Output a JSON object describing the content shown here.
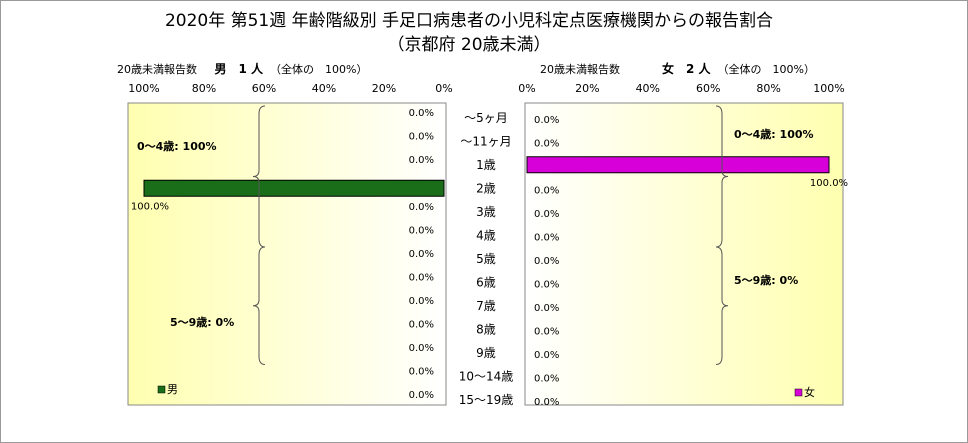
{
  "title_line1": "2020年 第51週 年齢階級別 手足口病患者の小児科定点医療機関からの報告割合",
  "title_line2": "（京都府 20歳未満）",
  "left_header": {
    "label": "20歳未満報告数",
    "count": "男　1 人",
    "note": "（全体の　100%）"
  },
  "right_header": {
    "label": "20歳未満報告数",
    "count": "女　2 人",
    "note": "（全体の　100%）"
  },
  "colors": {
    "male_bar": "#1a6e1a",
    "female_bar": "#d800d8",
    "plot_gradient_edge": "#ffffb0",
    "plot_gradient_center": "#ffffff"
  },
  "chart_data": {
    "type": "bar",
    "orientation": "horizontal-population-pyramid",
    "categories": [
      "～5ヶ月",
      "～11ヶ月",
      "1歳",
      "2歳",
      "3歳",
      "4歳",
      "5歳",
      "6歳",
      "7歳",
      "8歳",
      "9歳",
      "10～14歳",
      "15～19歳"
    ],
    "xlim": [
      0,
      100
    ],
    "x_ticks_left": [
      "100%",
      "80%",
      "60%",
      "40%",
      "20%",
      "0%"
    ],
    "x_ticks_right": [
      "0%",
      "20%",
      "40%",
      "60%",
      "80%",
      "100%"
    ],
    "series": [
      {
        "name": "男",
        "values": [
          0,
          0,
          0,
          100,
          0,
          0,
          0,
          0,
          0,
          0,
          0,
          0,
          0
        ],
        "labels": [
          "0.0%",
          "0.0%",
          "0.0%",
          "100.0%",
          "0.0%",
          "0.0%",
          "0.0%",
          "0.0%",
          "0.0%",
          "0.0%",
          "0.0%",
          "0.0%",
          "0.0%"
        ]
      },
      {
        "name": "女",
        "values": [
          0,
          0,
          100,
          0,
          0,
          0,
          0,
          0,
          0,
          0,
          0,
          0,
          0
        ],
        "labels": [
          "0.0%",
          "0.0%",
          "100.0%",
          "0.0%",
          "0.0%",
          "0.0%",
          "0.0%",
          "0.0%",
          "0.0%",
          "0.0%",
          "0.0%",
          "0.0%",
          "0.0%"
        ]
      }
    ],
    "annotations": {
      "male_0_4": "0～4歳: 100%",
      "male_5_9": "5～9歳: 0%",
      "female_0_4": "0～4歳: 100%",
      "female_5_9": "5～9歳: 0%"
    },
    "grid": false,
    "legend": "bottom-left / bottom-right"
  }
}
